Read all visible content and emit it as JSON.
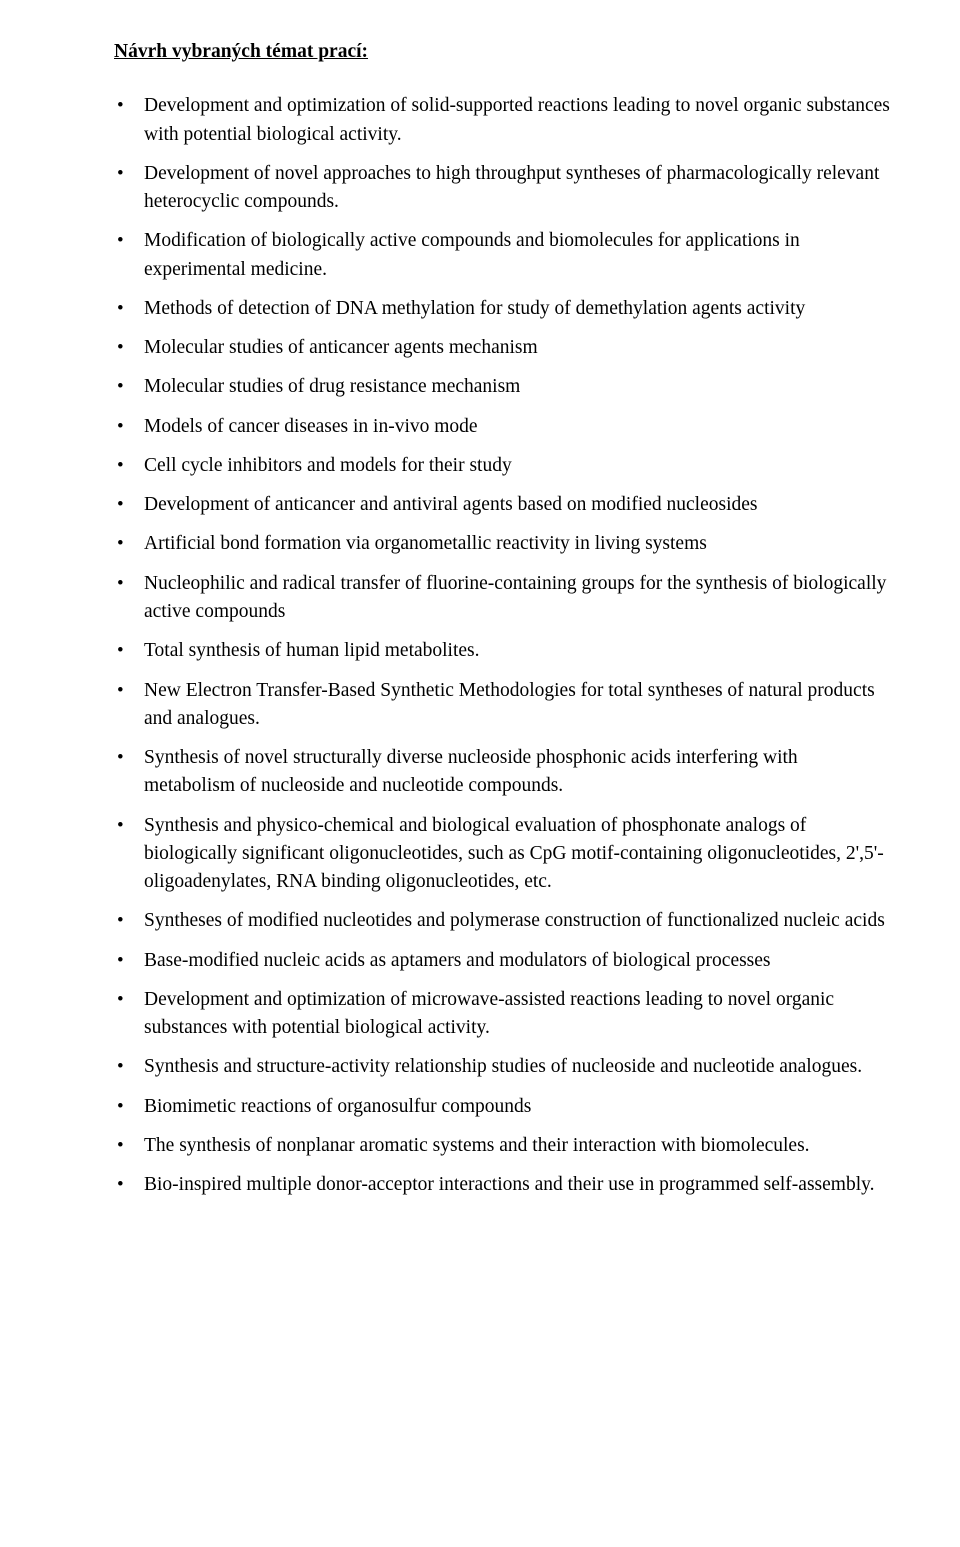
{
  "heading": "Návrh vybraných témat prací:",
  "items": [
    "Development and optimization of solid-supported reactions leading to novel organic substances with potential biological activity.",
    "Development of novel approaches to high throughput syntheses of pharmacologically relevant heterocyclic compounds.",
    "Modification of biologically active compounds and biomolecules for applications in experimental medicine.",
    "Methods of detection of DNA methylation for study of demethylation agents activity",
    "Molecular studies of anticancer agents mechanism",
    "Molecular studies of drug resistance mechanism",
    "Models of cancer diseases in in-vivo mode",
    "Cell cycle inhibitors and models for their study",
    "Development of anticancer and antiviral agents based on modified nucleosides",
    "Artificial bond formation via organometallic reactivity in living systems",
    "Nucleophilic and radical transfer of fluorine-containing groups for the synthesis of biologically active compounds",
    "Total synthesis of human lipid metabolites.",
    "New Electron Transfer-Based Synthetic Methodologies for total syntheses of natural products and analogues.",
    "Synthesis of novel structurally diverse nucleoside phosphonic acids interfering with metabolism of nucleoside and nucleotide compounds.",
    "Synthesis and physico-chemical and biological evaluation of phosphonate analogs of biologically significant oligonucleotides, such as CpG motif-containing oligonucleotides, 2',5'-oligoadenylates, RNA binding oligonucleotides, etc.",
    "Syntheses of modified nucleotides and polymerase construction of functionalized nucleic acids",
    "Base-modified nucleic acids as aptamers and modulators of biological processes",
    "Development and optimization of microwave-assisted reactions leading to novel organic substances with potential biological activity.",
    "Synthesis and structure-activity relationship studies of nucleoside and nucleotide analogues.",
    "Biomimetic reactions of organosulfur compounds",
    "The synthesis of nonplanar aromatic systems and their interaction with biomolecules.",
    "Bio-inspired multiple donor-acceptor interactions and their use in programmed self-assembly."
  ]
}
